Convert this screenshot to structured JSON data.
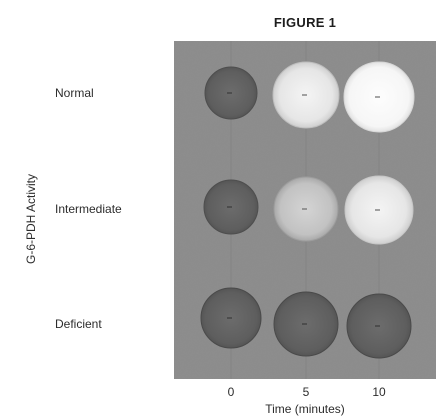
{
  "figure": {
    "title": "FIGURE 1",
    "y_axis_label": "G-6-PDH Activity",
    "x_axis_label": "Time (minutes)",
    "row_labels": [
      "Normal",
      "Intermediate",
      "Deficient"
    ],
    "time_points": [
      "0",
      "5",
      "10"
    ]
  },
  "spots": [
    {
      "row": "Normal",
      "time": "0",
      "fluorescence": "dark"
    },
    {
      "row": "Normal",
      "time": "5",
      "fluorescence": "bright"
    },
    {
      "row": "Normal",
      "time": "10",
      "fluorescence": "very bright"
    },
    {
      "row": "Intermediate",
      "time": "0",
      "fluorescence": "dark"
    },
    {
      "row": "Intermediate",
      "time": "5",
      "fluorescence": "moderate"
    },
    {
      "row": "Intermediate",
      "time": "10",
      "fluorescence": "bright"
    },
    {
      "row": "Deficient",
      "time": "0",
      "fluorescence": "dark"
    },
    {
      "row": "Deficient",
      "time": "5",
      "fluorescence": "dark"
    },
    {
      "row": "Deficient",
      "time": "10",
      "fluorescence": "dark"
    }
  ],
  "colors": {
    "plate_background": "#8e8e8e",
    "dark_spot": "#646464",
    "moderate_spot": "#c9c9c9",
    "bright_spot": "#ececec",
    "very_bright_spot": "#f8f8f8"
  }
}
